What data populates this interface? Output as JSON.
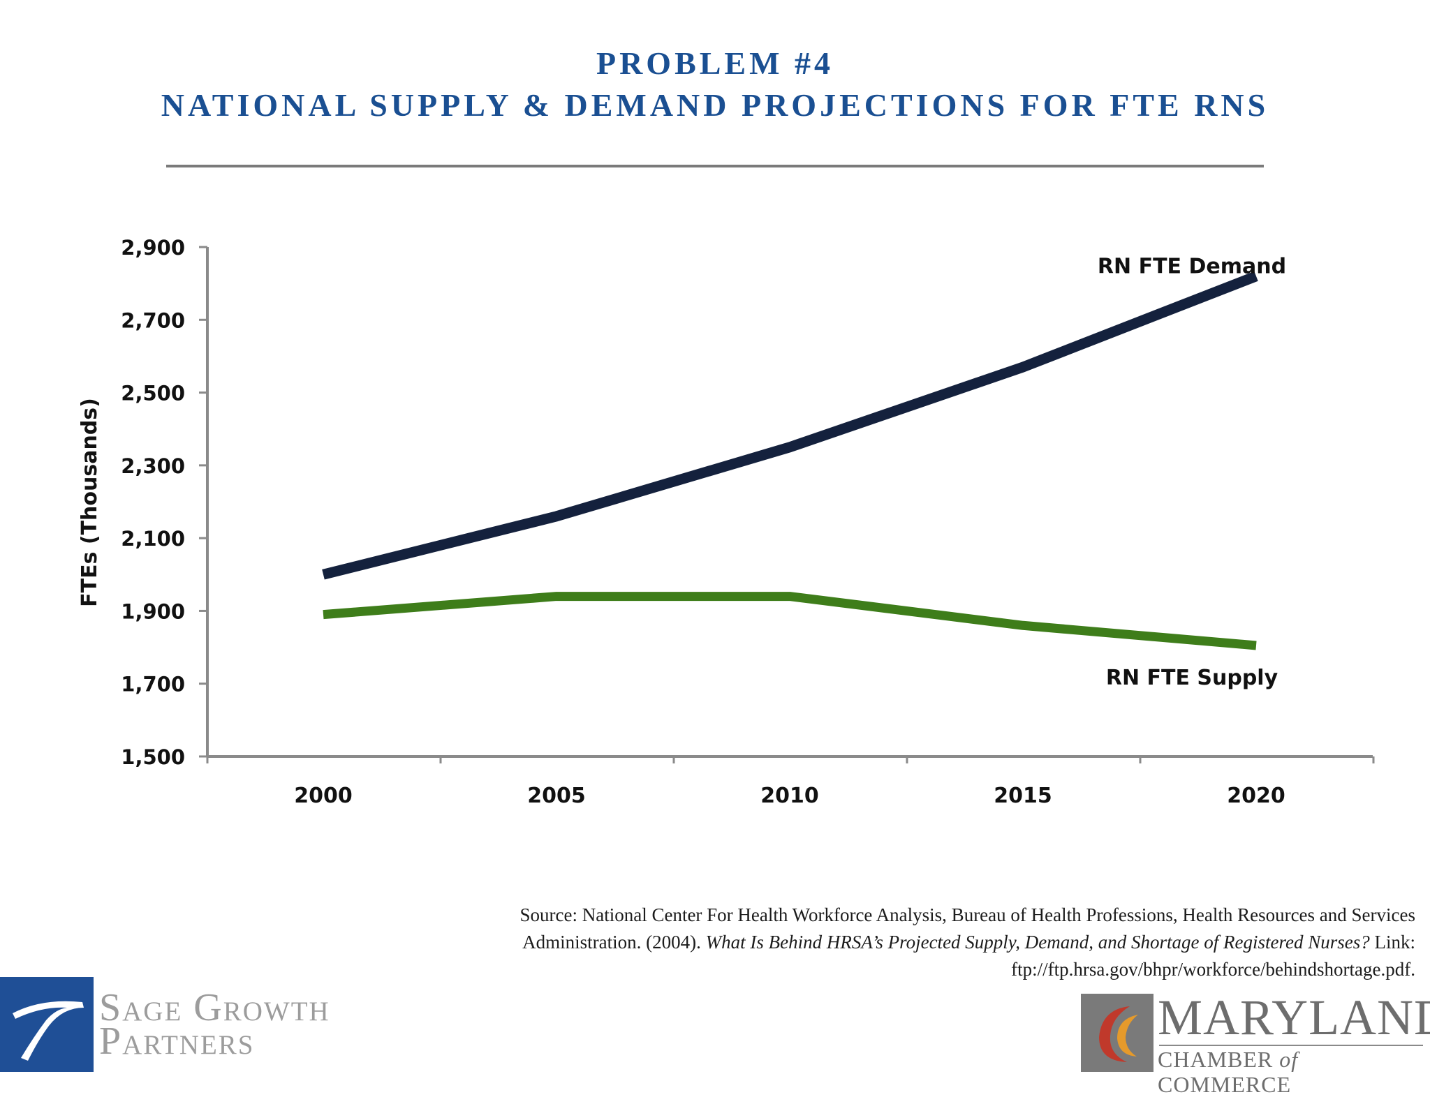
{
  "header": {
    "line1": "PROBLEM #4",
    "line2": "NATIONAL SUPPLY & DEMAND PROJECTIONS FOR FTE RNS"
  },
  "chart_data": {
    "type": "line",
    "x": [
      2000,
      2005,
      2010,
      2015,
      2020
    ],
    "ylabel": "FTEs (Thousands)",
    "ylim": [
      1500,
      2900
    ],
    "yticks": [
      "1,500",
      "1,700",
      "1,900",
      "2,100",
      "2,300",
      "2,500",
      "2,700",
      "2,900"
    ],
    "ytick_values": [
      1500,
      1700,
      1900,
      2100,
      2300,
      2500,
      2700,
      2900
    ],
    "xticks": [
      "2000",
      "2005",
      "2010",
      "2015",
      "2020"
    ],
    "series": [
      {
        "name": "RN FTE Demand",
        "values": [
          2000,
          2160,
          2350,
          2570,
          2820
        ],
        "color": "#14213d"
      },
      {
        "name": "RN FTE Supply",
        "values": [
          1890,
          1940,
          1940,
          1860,
          1805
        ],
        "color": "#3e7d1a"
      }
    ],
    "grid": false,
    "legend": "inline labels"
  },
  "source": {
    "prefix": "Source: National Center For Health Workforce Analysis, Bureau of Health Professions, Health Resources and Services Administration. (2004). ",
    "title": "What Is Behind HRSA’s Projected Supply, Demand, and Shortage of Registered Nurses?",
    "link": " Link: ftp://ftp.hrsa.gov/bhpr/workforce/behindshortage.pdf."
  },
  "logos": {
    "sage_line1": "Sage Growth",
    "sage_line2": "Partners",
    "md_line1": "MARYLAND",
    "md_line2_a": "CHAMBER ",
    "md_line2_of": "of",
    "md_line2_b": " COMMERCE"
  }
}
